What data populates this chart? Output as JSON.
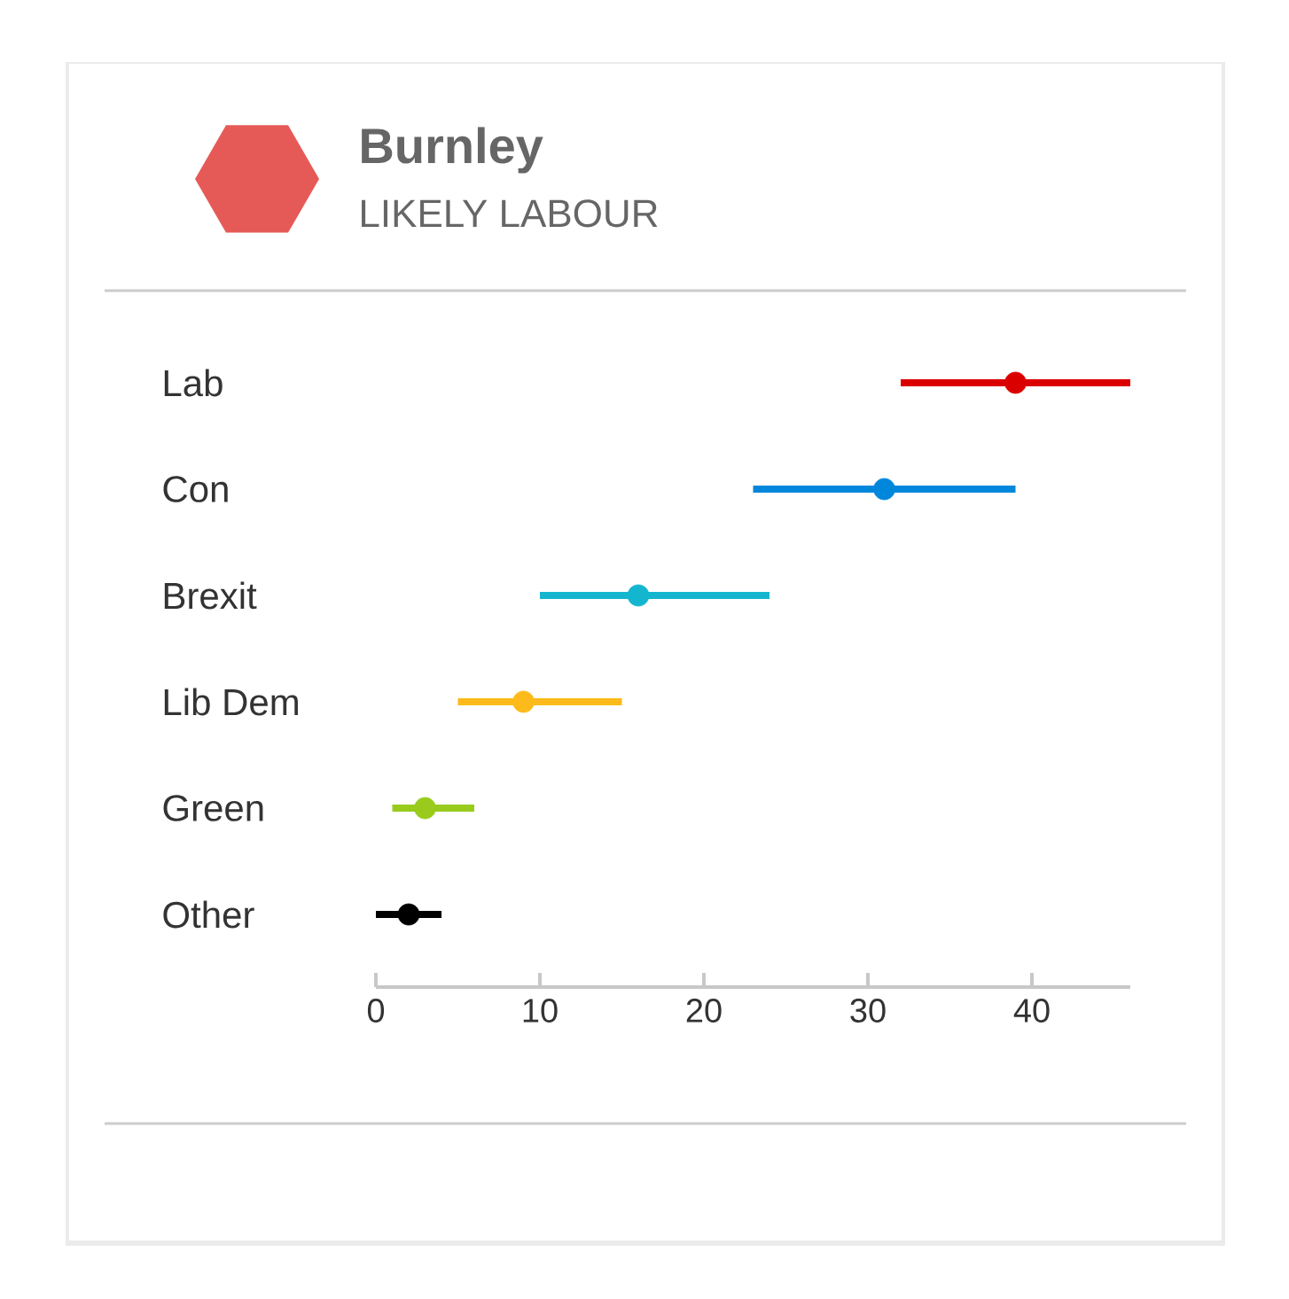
{
  "chart_data": {
    "type": "scatter",
    "title": "Burnley",
    "subtitle": "LIKELY LABOUR",
    "orientation": "horizontal",
    "categories": [
      "Lab",
      "Con",
      "Brexit",
      "Lib Dem",
      "Green",
      "Other"
    ],
    "values": [
      39,
      31,
      16,
      9,
      3,
      2
    ],
    "errors": [
      [
        32,
        46
      ],
      [
        23,
        39
      ],
      [
        10,
        24
      ],
      [
        5,
        15
      ],
      [
        1,
        6
      ],
      [
        0,
        4
      ]
    ],
    "colors": [
      "#db0000",
      "#0087dc",
      "#14b6cf",
      "#fcbb1a",
      "#98cb1c",
      "#000000"
    ],
    "xlim": [
      0,
      46
    ],
    "xticks": [
      0,
      10,
      20,
      30,
      40
    ],
    "marker": "circle"
  }
}
